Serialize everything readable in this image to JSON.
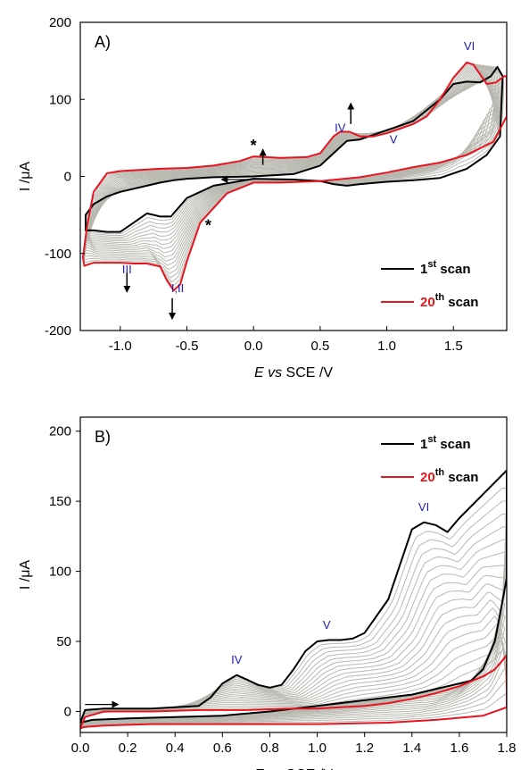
{
  "chart_data": [
    {
      "type": "line",
      "panel_label": "A)",
      "xlabel": {
        "italic_part": "E vs",
        "rest": " SCE /V"
      },
      "ylabel": "I /μA",
      "xlim": [
        -1.3,
        1.9
      ],
      "ylim": [
        -200,
        200
      ],
      "x_ticks": [
        -1.0,
        -0.5,
        0.0,
        0.5,
        1.0,
        1.5
      ],
      "x_tick_labels": [
        "-1.0",
        "-0.5",
        "0.0",
        "0.5",
        "1.0",
        "1.5"
      ],
      "y_ticks": [
        -200,
        -100,
        0,
        100,
        200
      ],
      "y_tick_labels": [
        "-200",
        "-100",
        "0",
        "100",
        "200"
      ],
      "legend": {
        "position": "bottom-right",
        "entries": [
          {
            "main": "1",
            "sup": "st",
            "rest": " scan",
            "color": "#000000"
          },
          {
            "main": "20",
            "sup": "th",
            "rest": " scan",
            "color": "#e8141e"
          }
        ]
      },
      "peak_labels": [
        {
          "text": "I,II",
          "x": -0.57,
          "y": -150
        },
        {
          "text": "III",
          "x": -0.95,
          "y": -126
        },
        {
          "text": "IV",
          "x": 0.65,
          "y": 58
        },
        {
          "text": "V",
          "x": 1.05,
          "y": 43
        },
        {
          "text": "VI",
          "x": 1.62,
          "y": 164
        }
      ],
      "stars": [
        {
          "x": 0.0,
          "y": 33
        },
        {
          "x": -0.34,
          "y": -71
        }
      ],
      "arrows": [
        {
          "x": 0.07,
          "y_from": 15,
          "y_to": 35
        },
        {
          "x": 0.73,
          "y_from": 68,
          "y_to": 95
        },
        {
          "x": -0.95,
          "y_from": -125,
          "y_to": -150
        },
        {
          "x": -0.61,
          "y_from": -158,
          "y_to": -185
        }
      ],
      "sweep_arrow": {
        "x_from": -0.02,
        "x_to": -0.24,
        "y": -4
      },
      "series": [
        {
          "name": "1st scan",
          "color": "#000000",
          "x": [
            0.0,
            0.3,
            0.5,
            0.6,
            0.7,
            0.8,
            1.0,
            1.2,
            1.4,
            1.5,
            1.6,
            1.7,
            1.78,
            1.83,
            1.87,
            1.85,
            1.75,
            1.6,
            1.4,
            1.2,
            1.0,
            0.8,
            0.7,
            0.6,
            0.5,
            0.3,
            0.0,
            -0.3,
            -0.5,
            -0.62,
            -0.7,
            -0.8,
            -0.9,
            -1.0,
            -1.1,
            -1.2,
            -1.26,
            -1.26,
            -1.2,
            -1.1,
            -1.0,
            -0.9,
            -0.8,
            -0.7,
            -0.6,
            -0.5,
            -0.3,
            0.0
          ],
          "y": [
            0,
            3,
            14,
            30,
            46,
            48,
            60,
            72,
            100,
            120,
            123,
            122,
            130,
            142,
            130,
            52,
            28,
            10,
            -2,
            -5,
            -7,
            -10,
            -12,
            -10,
            -6,
            -4,
            -3,
            -12,
            -28,
            -52,
            -52,
            -48,
            -60,
            -72,
            -72,
            -70,
            -70,
            -50,
            -36,
            -26,
            -20,
            -16,
            -12,
            -8,
            -5,
            -3,
            -1,
            0
          ]
        },
        {
          "name": "20th scan",
          "color": "#e8141e",
          "x": [
            0.0,
            0.2,
            0.4,
            0.5,
            0.6,
            0.65,
            0.72,
            0.8,
            0.9,
            1.0,
            1.1,
            1.2,
            1.3,
            1.4,
            1.5,
            1.6,
            1.65,
            1.75,
            1.82,
            1.88,
            1.9,
            1.9,
            1.8,
            1.6,
            1.4,
            1.2,
            1.0,
            0.8,
            0.5,
            0.2,
            0.0,
            -0.2,
            -0.4,
            -0.5,
            -0.55,
            -0.6,
            -0.65,
            -0.7,
            -0.8,
            -0.9,
            -1.0,
            -1.1,
            -1.2,
            -1.27,
            -1.28,
            -1.25,
            -1.2,
            -1.1,
            -1.0,
            -0.9,
            -0.7,
            -0.5,
            -0.3,
            -0.1,
            0.0
          ],
          "y": [
            26,
            24,
            25,
            30,
            52,
            58,
            58,
            52,
            52,
            56,
            62,
            68,
            78,
            100,
            128,
            148,
            145,
            120,
            122,
            130,
            130,
            78,
            45,
            28,
            18,
            12,
            5,
            -1,
            -6,
            -8,
            -8,
            -22,
            -60,
            -110,
            -140,
            -148,
            -135,
            -117,
            -113,
            -113,
            -112,
            -112,
            -112,
            -116,
            -105,
            -65,
            -20,
            4,
            7,
            8,
            10,
            11,
            14,
            20,
            26
          ]
        }
      ]
    },
    {
      "type": "line",
      "panel_label": "B)",
      "xlabel": {
        "italic_part": "E vs",
        "rest": " SCE /V"
      },
      "ylabel": "I /μA",
      "xlim": [
        0.0,
        1.8
      ],
      "ylim": [
        -15,
        210
      ],
      "x_ticks": [
        0.0,
        0.2,
        0.4,
        0.6,
        0.8,
        1.0,
        1.2,
        1.4,
        1.6,
        1.8
      ],
      "x_tick_labels": [
        "0.0",
        "0.2",
        "0.4",
        "0.6",
        "0.8",
        "1.0",
        "1.2",
        "1.4",
        "1.6",
        "1.8"
      ],
      "y_ticks": [
        0,
        50,
        100,
        150,
        200
      ],
      "y_tick_labels": [
        "0",
        "50",
        "100",
        "150",
        "200"
      ],
      "legend": {
        "position": "top-right",
        "entries": [
          {
            "main": "1",
            "sup": "st",
            "rest": " scan",
            "color": "#000000"
          },
          {
            "main": "20",
            "sup": "th",
            "rest": " scan",
            "color": "#e8141e"
          }
        ]
      },
      "peak_labels": [
        {
          "text": "IV",
          "x": 0.66,
          "y": 34
        },
        {
          "text": "V",
          "x": 1.04,
          "y": 59
        },
        {
          "text": "VI",
          "x": 1.45,
          "y": 143
        }
      ],
      "sweep_arrow": {
        "x_from": 0.02,
        "x_to": 0.16,
        "y": 5
      },
      "series": [
        {
          "name": "1st scan",
          "color": "#000000",
          "x": [
            0.0,
            0.02,
            0.1,
            0.3,
            0.5,
            0.55,
            0.6,
            0.66,
            0.7,
            0.75,
            0.8,
            0.85,
            0.9,
            0.95,
            1.0,
            1.05,
            1.1,
            1.15,
            1.2,
            1.3,
            1.4,
            1.45,
            1.5,
            1.55,
            1.6,
            1.7,
            1.8,
            1.8,
            1.75,
            1.7,
            1.65,
            1.6,
            1.5,
            1.4,
            1.2,
            1.0,
            0.8,
            0.6,
            0.4,
            0.2,
            0.05,
            0.0
          ],
          "y": [
            -8,
            1,
            2,
            2,
            4,
            10,
            20,
            26,
            23,
            19,
            17,
            19,
            30,
            43,
            50,
            51,
            51,
            52,
            56,
            80,
            130,
            135,
            133,
            128,
            138,
            155,
            172,
            95,
            50,
            30,
            22,
            20,
            16,
            12,
            8,
            4,
            0,
            -3,
            -4,
            -5,
            -6,
            -8
          ]
        },
        {
          "name": "20th scan",
          "color": "#e8141e",
          "x": [
            0.0,
            0.02,
            0.1,
            0.3,
            0.5,
            0.7,
            0.9,
            1.0,
            1.1,
            1.2,
            1.3,
            1.4,
            1.5,
            1.6,
            1.7,
            1.75,
            1.8,
            1.8,
            1.7,
            1.5,
            1.3,
            1.0,
            0.8,
            0.6,
            0.3,
            0.1,
            0.02,
            0.0
          ],
          "y": [
            -12,
            -4,
            0,
            0,
            1,
            1,
            2,
            2,
            3,
            4,
            6,
            9,
            13,
            18,
            25,
            30,
            40,
            3,
            -3,
            -6,
            -8,
            -9,
            -9,
            -9,
            -9,
            -10,
            -11,
            -12
          ]
        }
      ]
    }
  ]
}
